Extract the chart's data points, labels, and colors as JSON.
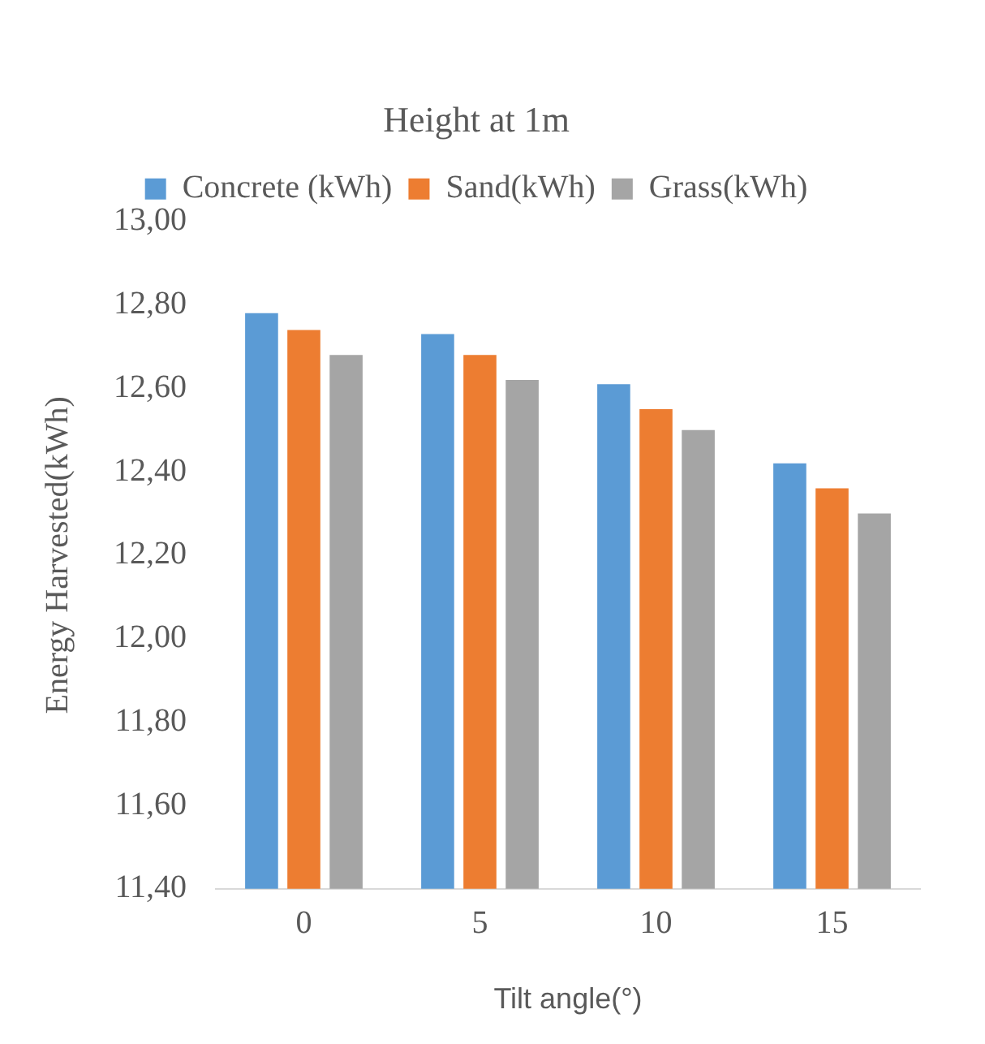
{
  "chart_data": {
    "type": "bar",
    "title": "Height at 1m",
    "xlabel": "Tilt angle(°)",
    "ylabel": "Energy Harvested(kWh)",
    "categories": [
      "0",
      "5",
      "10",
      "15"
    ],
    "series": [
      {
        "name": "Concrete (kWh)",
        "color": "#5b9bd5",
        "values": [
          12.78,
          12.73,
          12.61,
          12.42
        ]
      },
      {
        "name": "Sand(kWh)",
        "color": "#ed7d31",
        "values": [
          12.74,
          12.68,
          12.55,
          12.36
        ]
      },
      {
        "name": "Grass(kWh)",
        "color": "#a5a5a5",
        "values": [
          12.68,
          12.62,
          12.5,
          12.3
        ]
      }
    ],
    "ylim": [
      11.4,
      13.0
    ],
    "yticks": [
      {
        "value": 11.4,
        "label": "11,40"
      },
      {
        "value": 11.6,
        "label": "11,60"
      },
      {
        "value": 11.8,
        "label": "11,80"
      },
      {
        "value": 12.0,
        "label": "12,00"
      },
      {
        "value": 12.2,
        "label": "12,20"
      },
      {
        "value": 12.4,
        "label": "12,40"
      },
      {
        "value": 12.6,
        "label": "12,60"
      },
      {
        "value": 12.8,
        "label": "12,80"
      },
      {
        "value": 13.0,
        "label": "13,00"
      }
    ],
    "grid": false,
    "legend": "top"
  }
}
